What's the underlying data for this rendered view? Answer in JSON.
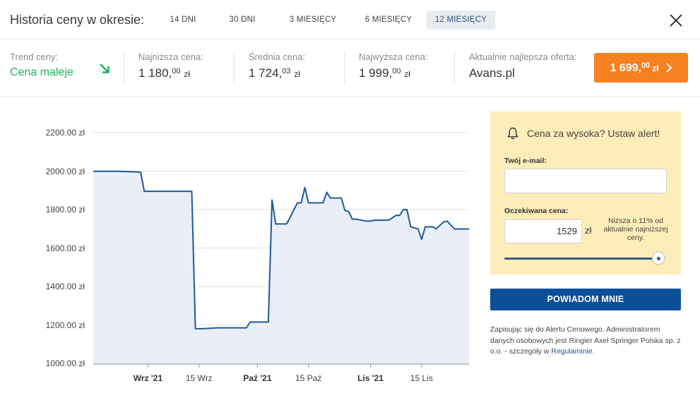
{
  "header": {
    "title": "Historia ceny w okresie:",
    "tabs": [
      {
        "label": "14 DNI",
        "active": false
      },
      {
        "label": "30 DNI",
        "active": false
      },
      {
        "label": "3 MIESIĘCY",
        "active": false
      },
      {
        "label": "6 MIESIĘCY",
        "active": false
      },
      {
        "label": "12 MIESIĘCY",
        "active": true
      }
    ],
    "close_icon": "close-icon"
  },
  "stats": {
    "trend": {
      "label": "Trend ceny:",
      "value": "Cena maleje",
      "icon": "arrow-down-right-icon",
      "color": "#1bb15a"
    },
    "lowest": {
      "label": "Najniższa cena:",
      "int": "1 180,",
      "dec": "00",
      "cur": "zł"
    },
    "average": {
      "label": "Średnia cena:",
      "int": "1 724,",
      "dec": "03",
      "cur": "zł"
    },
    "highest": {
      "label": "Najwyższa cena:",
      "int": "1 999,",
      "dec": "00",
      "cur": "zł"
    },
    "best_offer": {
      "label": "Aktualnie najlepsza oferta:",
      "shop": "Avans.pl",
      "int": "1 699,",
      "dec": "00",
      "cur": "zł",
      "color": "#f58120"
    }
  },
  "chart_data": {
    "type": "area",
    "x_tick_labels": [
      "Wrz '21",
      "15 Wrz",
      "Paź '21",
      "15 Paź",
      "Lis '21",
      "15 Lis"
    ],
    "y_tick_labels": [
      "2200.00 zł",
      "2000.00 zł",
      "1800.00 zł",
      "1600.00 zł",
      "1400.00 zł",
      "1200.00 zł",
      "1000.00 zł"
    ],
    "ylim": [
      1000,
      2200
    ],
    "grid": true,
    "line_color": "#1f5a96",
    "fill_color": "#e9eef7",
    "x": [
      "2021-08-17",
      "2021-08-24",
      "2021-08-30",
      "2021-08-31",
      "2021-09-07",
      "2021-09-13",
      "2021-09-14",
      "2021-09-16",
      "2021-09-20",
      "2021-09-21",
      "2021-09-28",
      "2021-09-29",
      "2021-10-01",
      "2021-10-03",
      "2021-10-04",
      "2021-10-05",
      "2021-10-06",
      "2021-10-08",
      "2021-10-09",
      "2021-10-10",
      "2021-10-11",
      "2021-10-12",
      "2021-10-13",
      "2021-10-14",
      "2021-10-15",
      "2021-10-18",
      "2021-10-19",
      "2021-10-20",
      "2021-10-21",
      "2021-10-24",
      "2021-10-25",
      "2021-10-26",
      "2021-10-27",
      "2021-10-28",
      "2021-10-31",
      "2021-11-01",
      "2021-11-02",
      "2021-11-04",
      "2021-11-05",
      "2021-11-06",
      "2021-11-08",
      "2021-11-09",
      "2021-11-10",
      "2021-11-11",
      "2021-11-12",
      "2021-11-14",
      "2021-11-15",
      "2021-11-16",
      "2021-11-17",
      "2021-11-18",
      "2021-11-19",
      "2021-11-21",
      "2021-11-22",
      "2021-11-24",
      "2021-11-28"
    ],
    "y": [
      1999,
      1999,
      1995,
      1895,
      1895,
      1895,
      1180,
      1180,
      1185,
      1185,
      1185,
      1215,
      1215,
      1215,
      1215,
      1850,
      1725,
      1725,
      1725,
      1760,
      1800,
      1835,
      1835,
      1915,
      1835,
      1835,
      1835,
      1890,
      1860,
      1860,
      1795,
      1790,
      1750,
      1750,
      1740,
      1740,
      1745,
      1745,
      1745,
      1745,
      1770,
      1770,
      1800,
      1800,
      1710,
      1700,
      1645,
      1710,
      1710,
      1710,
      1700,
      1735,
      1740,
      1699,
      1699
    ]
  },
  "alert": {
    "title": "Cena za wysoka? Ustaw alert!",
    "email_label": "Twój e-mail:",
    "email_value": "",
    "price_label": "Oczekiwana cena:",
    "price_value": "1529",
    "price_cur": "zł",
    "note": "Niższa o 11% od aktualnie najniższej ceny.",
    "slider_value_pct": 100,
    "background": "#fdedb9"
  },
  "notify_button": {
    "label": "POWIADOM MNIE",
    "color": "#0b4f98"
  },
  "legal": {
    "text": "Zapisując się do Alertu Cenowego. Administratorem danych osobowych jest Ringier Axel Springer Polska sp. z o.o. - szczegóły w ",
    "link": "Regulaminie",
    "end": "."
  }
}
